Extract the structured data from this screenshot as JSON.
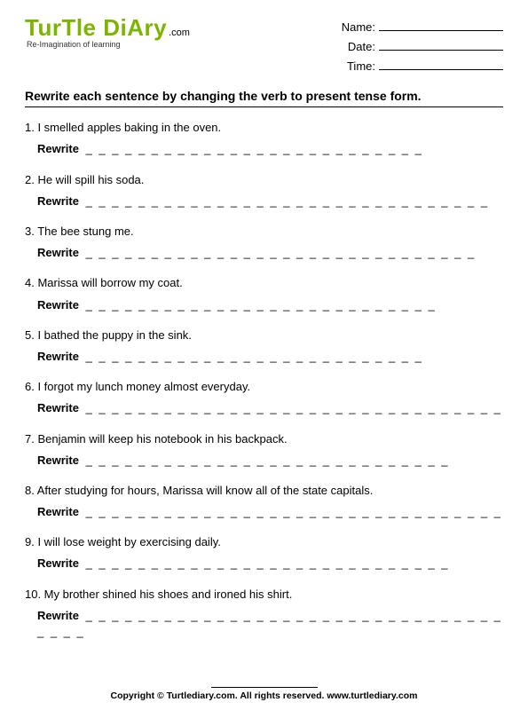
{
  "logo": {
    "brand": "TurTle DiAry",
    "suffix": ".com",
    "tagline": "Re-Imagination of learning",
    "brand_color": "#7bb501"
  },
  "info": {
    "name_label": "Name:",
    "date_label": "Date:",
    "time_label": "Time:"
  },
  "instruction": "Rewrite each sentence by changing the verb to present tense form.",
  "rewrite_label": "Rewrite",
  "questions": [
    {
      "num": "1.",
      "text": "I smelled apples baking in the oven.",
      "dashes": "_ _ _ _ _ _ _ _ _ _ _ _ _ _ _ _ _ _ _ _ _ _ _ _ _ _"
    },
    {
      "num": "2.",
      "text": "He will spill his soda.",
      "dashes": "_ _ _ _ _ _ _ _ _ _ _ _ _ _ _ _ _ _ _ _ _ _ _ _ _ _ _ _ _ _ _"
    },
    {
      "num": "3.",
      "text": "The bee stung me.",
      "dashes": "_ _ _ _ _ _ _ _ _ _ _ _ _ _ _ _ _ _ _ _ _ _ _ _ _ _ _ _ _ _"
    },
    {
      "num": "4.",
      "text": "Marissa will borrow my coat.",
      "dashes": "_ _ _ _ _ _ _ _ _ _ _ _ _ _ _ _ _ _ _ _ _ _ _ _ _ _ _"
    },
    {
      "num": "5.",
      "text": "I bathed the puppy in the sink.",
      "dashes": "_ _ _ _ _ _ _ _ _ _ _ _ _ _ _ _ _ _ _ _ _ _ _ _ _ _"
    },
    {
      "num": "6.",
      "text": "I forgot my lunch money almost everyday.",
      "dashes": "_ _ _ _ _ _ _ _ _ _ _ _ _ _ _ _ _ _ _ _ _ _ _ _ _ _ _ _ _ _ _ _"
    },
    {
      "num": "7.",
      "text": "Benjamin will keep his notebook in his backpack.",
      "dashes": "_ _ _ _ _ _ _ _ _ _ _ _ _ _ _ _ _ _ _ _ _ _ _ _ _ _ _ _"
    },
    {
      "num": "8.",
      "text": "After studying for hours, Marissa will know all of the state capitals.",
      "dashes": "_ _ _ _ _ _ _ _ _ _ _ _ _ _ _ _ _ _ _ _ _ _ _ _ _ _ _ _ _ _ _ _"
    },
    {
      "num": "9.",
      "text": "I will lose weight by exercising daily.",
      "dashes": "_ _ _ _ _ _ _ _ _ _ _ _ _ _ _ _ _ _ _ _ _ _ _ _ _ _ _ _"
    },
    {
      "num": "10.",
      "text": "My brother shined his shoes and ironed his shirt.",
      "dashes": "_ _ _ _ _ _ _ _ _ _ _ _ _ _ _ _ _ _ _ _ _ _ _ _ _ _ _ _ _ _ _ _ _ _ _ _"
    }
  ],
  "footer": "Copyright © Turtlediary.com. All rights reserved. www.turtlediary.com"
}
